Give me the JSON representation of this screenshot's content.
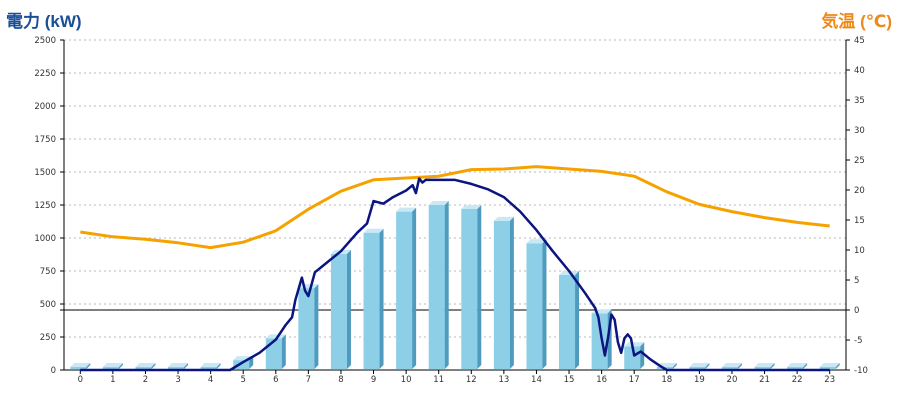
{
  "chart_data": {
    "type": "bar",
    "left_axis": {
      "label": "電力 (kW)",
      "range": [
        0,
        2500
      ],
      "ticks": [
        0,
        250,
        500,
        750,
        1000,
        1250,
        1500,
        1750,
        2000,
        2250,
        2500
      ]
    },
    "right_axis": {
      "label": "気温 (℃)",
      "range": [
        -10,
        45
      ],
      "ticks": [
        -10,
        -5,
        0,
        5,
        10,
        15,
        20,
        25,
        30,
        35,
        40,
        45
      ]
    },
    "categories": [
      "0",
      "1",
      "2",
      "3",
      "4",
      "5",
      "6",
      "7",
      "8",
      "9",
      "10",
      "11",
      "12",
      "13",
      "14",
      "15",
      "16",
      "17",
      "18",
      "19",
      "20",
      "21",
      "22",
      "23"
    ],
    "grid": true,
    "series": [
      {
        "type": "bar",
        "axis": "left",
        "values": [
          0,
          0,
          0,
          0,
          0,
          75,
          240,
          620,
          880,
          1040,
          1200,
          1250,
          1220,
          1130,
          960,
          720,
          430,
          180,
          0,
          0,
          0,
          0,
          0,
          0
        ]
      },
      {
        "type": "line",
        "axis": "left",
        "x": [
          0,
          4.6,
          5.0,
          5.5,
          6.0,
          6.3,
          6.5,
          6.6,
          6.8,
          6.9,
          7.0,
          7.2,
          7.5,
          8.0,
          8.5,
          8.8,
          9.0,
          9.3,
          9.6,
          10.0,
          10.2,
          10.3,
          10.4,
          10.5,
          10.6,
          11.0,
          11.5,
          12.0,
          12.5,
          13.0,
          13.5,
          14.0,
          14.5,
          15.0,
          15.5,
          15.8,
          15.9,
          16.0,
          16.1,
          16.2,
          16.3,
          16.4,
          16.5,
          16.6,
          16.7,
          16.8,
          16.9,
          17.0,
          17.2,
          17.5,
          17.8,
          18.0,
          23.0
        ],
        "values": [
          0,
          0,
          60,
          130,
          230,
          340,
          400,
          530,
          700,
          600,
          560,
          740,
          800,
          900,
          1040,
          1110,
          1280,
          1260,
          1310,
          1360,
          1400,
          1340,
          1450,
          1420,
          1440,
          1440,
          1440,
          1410,
          1370,
          1310,
          1200,
          1060,
          900,
          750,
          580,
          470,
          400,
          240,
          110,
          250,
          420,
          380,
          210,
          130,
          240,
          270,
          240,
          110,
          140,
          80,
          30,
          0,
          0
        ]
      },
      {
        "type": "line",
        "axis": "right",
        "values": [
          13.0,
          12.2,
          11.8,
          11.2,
          10.4,
          11.3,
          13.2,
          16.8,
          19.8,
          21.7,
          22.0,
          22.3,
          23.4,
          23.5,
          23.9,
          23.5,
          23.1,
          22.3,
          19.7,
          17.6,
          16.4,
          15.4,
          14.6,
          14.0
        ]
      }
    ],
    "colors": {
      "bar_face": "#8ecfe8",
      "bar_side": "#4e9bbf",
      "bar_top": "#c7e8f4",
      "power_line": "#0c1480",
      "temp_line": "#f5a200",
      "left_title": "#1a4f96",
      "right_title": "#ee8a1b"
    }
  }
}
